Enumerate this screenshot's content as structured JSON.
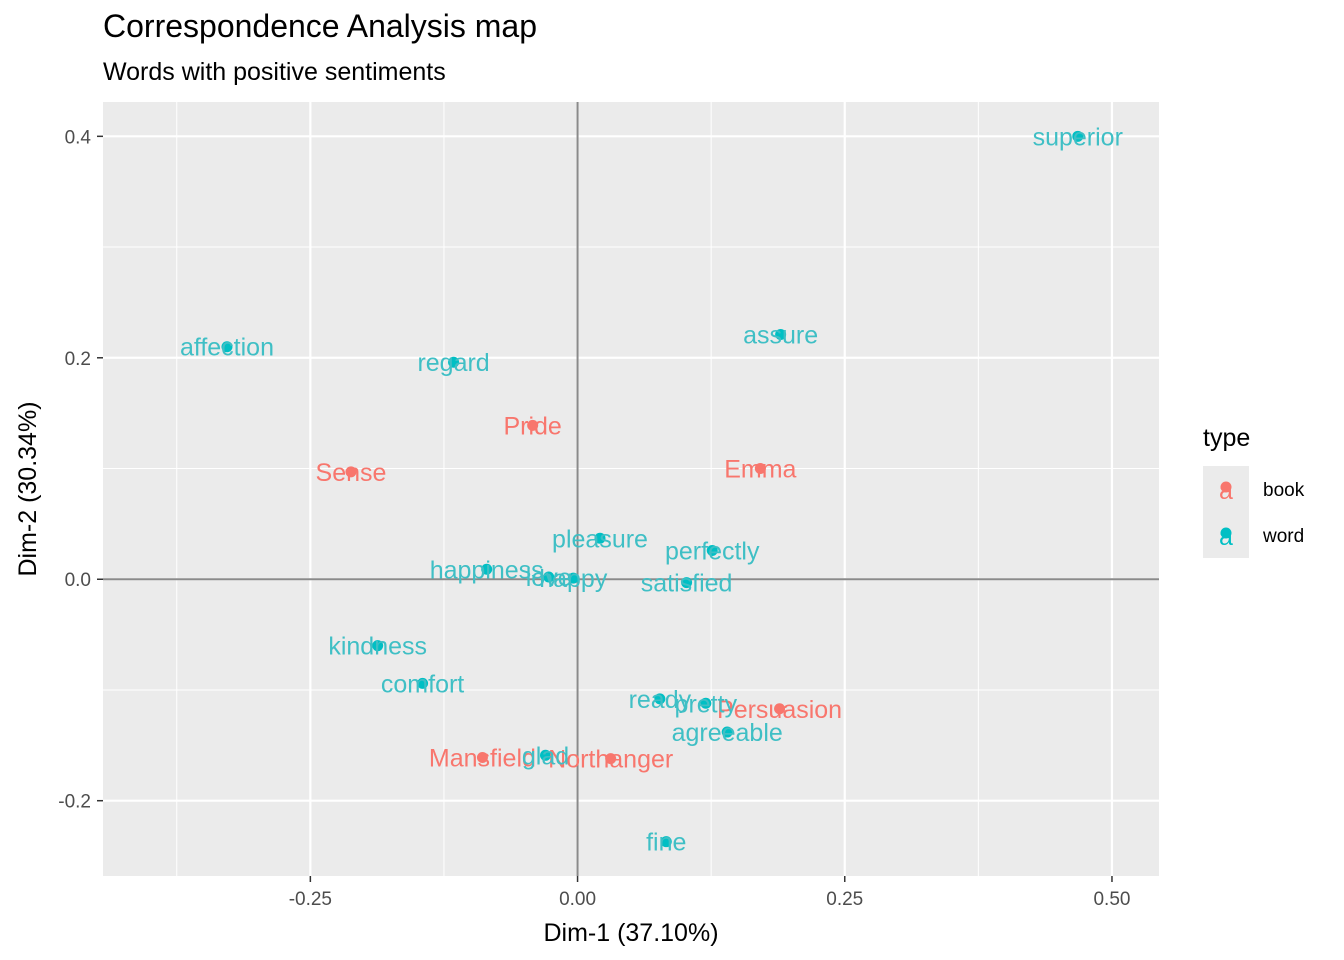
{
  "chart_data": {
    "type": "scatter",
    "title": "Correspondence Analysis map",
    "subtitle": "Words with positive sentiments",
    "xlabel": "Dim-1 (37.10%)",
    "ylabel": "Dim-2 (30.34%)",
    "xlim": [
      -0.444,
      0.544
    ],
    "ylim": [
      -0.268,
      0.431
    ],
    "x_ticks": [
      -0.25,
      0.0,
      0.25,
      0.5
    ],
    "x_tick_labels": [
      "-0.25",
      "0.00",
      "0.25",
      "0.50"
    ],
    "y_ticks": [
      -0.2,
      0.0,
      0.2,
      0.4
    ],
    "y_tick_labels": [
      "-0.2",
      "0.0",
      "0.2",
      "0.4"
    ],
    "grid": true,
    "legend": {
      "title": "type",
      "position": "right",
      "glyph": "a",
      "entries": [
        {
          "name": "book",
          "color": "#F8766D"
        },
        {
          "name": "word",
          "color": "#00BFC4"
        }
      ]
    },
    "series": [
      {
        "name": "book",
        "color": "#F8766D",
        "points": [
          {
            "label": "Pride",
            "x": -0.042,
            "y": 0.139
          },
          {
            "label": "Sense",
            "x": -0.212,
            "y": 0.097
          },
          {
            "label": "Emma",
            "x": 0.171,
            "y": 0.1
          },
          {
            "label": "Persuasion",
            "x": 0.189,
            "y": -0.117
          },
          {
            "label": "Mansfield",
            "x": -0.089,
            "y": -0.161
          },
          {
            "label": "Northanger",
            "x": 0.031,
            "y": -0.162
          }
        ]
      },
      {
        "name": "word",
        "color": "#00BFC4",
        "label_color": "#3FBFC5",
        "points": [
          {
            "label": "superior",
            "x": 0.468,
            "y": 0.4
          },
          {
            "label": "assure",
            "x": 0.19,
            "y": 0.221
          },
          {
            "label": "affection",
            "x": -0.328,
            "y": 0.21
          },
          {
            "label": "regard",
            "x": -0.116,
            "y": 0.196
          },
          {
            "label": "pleasure",
            "x": 0.021,
            "y": 0.037
          },
          {
            "label": "perfectly",
            "x": 0.126,
            "y": 0.026
          },
          {
            "label": "happiness",
            "x": -0.085,
            "y": 0.009
          },
          {
            "label": "love",
            "x": -0.027,
            "y": 0.002
          },
          {
            "label": "happy",
            "x": -0.004,
            "y": 0.001
          },
          {
            "label": "satisfied",
            "x": 0.102,
            "y": -0.003
          },
          {
            "label": "kindness",
            "x": -0.187,
            "y": -0.06
          },
          {
            "label": "comfort",
            "x": -0.145,
            "y": -0.094
          },
          {
            "label": "ready",
            "x": 0.077,
            "y": -0.108
          },
          {
            "label": "pretty",
            "x": 0.12,
            "y": -0.112
          },
          {
            "label": "agreeable",
            "x": 0.14,
            "y": -0.138
          },
          {
            "label": "glad",
            "x": -0.03,
            "y": -0.159
          },
          {
            "label": "fine",
            "x": 0.083,
            "y": -0.237
          }
        ]
      }
    ]
  }
}
